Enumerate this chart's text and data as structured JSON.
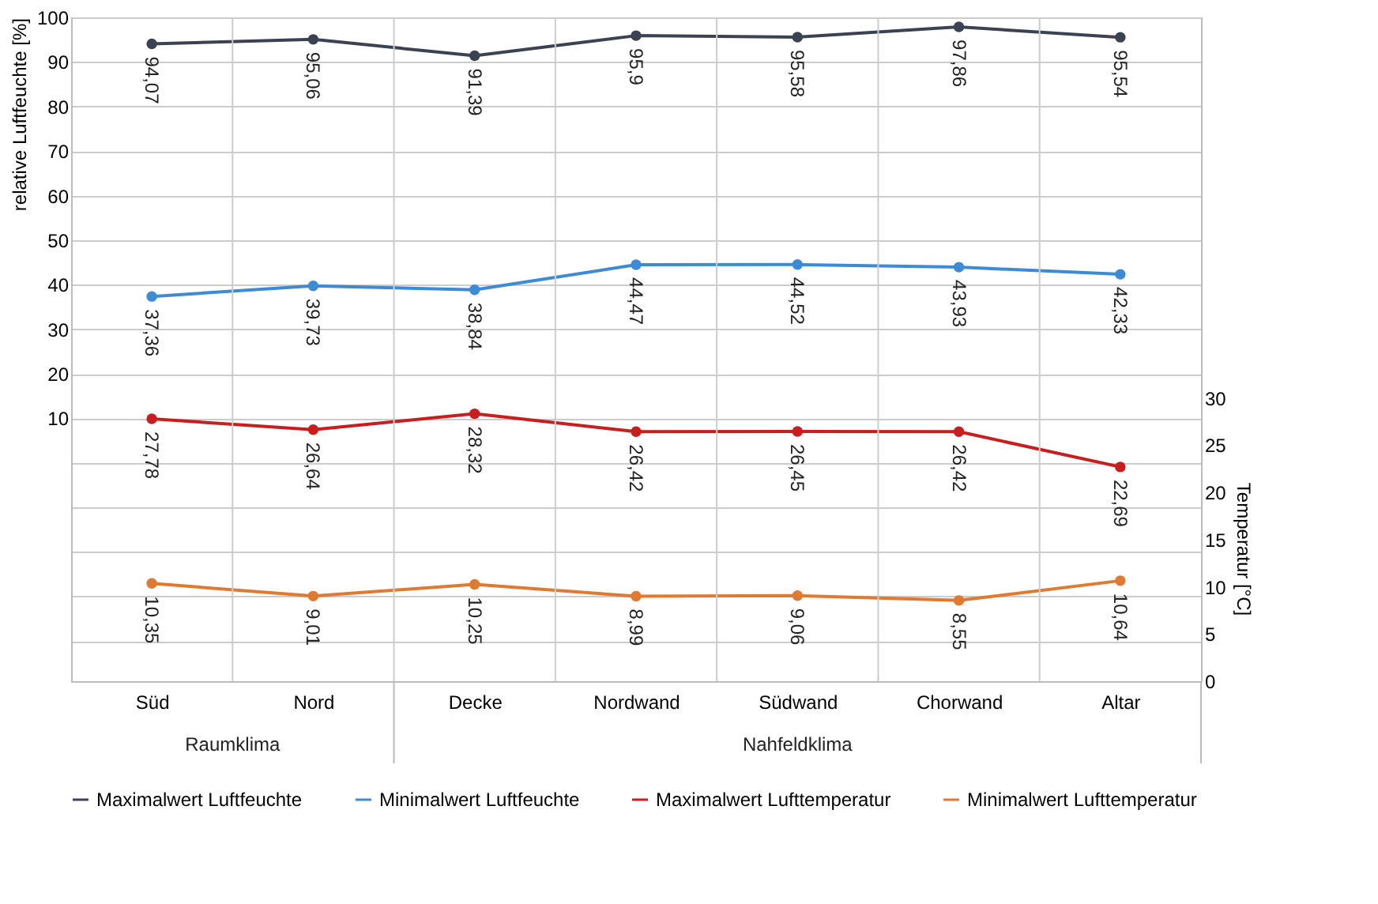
{
  "chart_data": {
    "type": "line",
    "xlabel": null,
    "ylabel": "relative Luftfeuchte [%]",
    "y2label": "Temperatur [°C]",
    "categories": [
      "Süd",
      "Nord",
      "Decke",
      "Nordwand",
      "Südwand",
      "Chorwand",
      "Altar"
    ],
    "series": [
      {
        "name": "Maximalwert Luftfeuchte",
        "color": "#3b4252",
        "values": [
          94.07,
          95.06,
          91.39,
          95.9,
          95.58,
          97.86,
          95.54
        ],
        "value_labels": [
          "94,07",
          "95,06",
          "91,39",
          "95,9",
          "95,58",
          "97,86",
          "95,54"
        ]
      },
      {
        "name": "Minimalwert Luftfeuchte",
        "color": "#3d8bd4",
        "values": [
          37.36,
          39.73,
          38.84,
          44.47,
          44.52,
          43.93,
          42.33
        ],
        "value_labels": [
          "37,36",
          "39,73",
          "38,84",
          "44,47",
          "44,52",
          "43,93",
          "42,33"
        ]
      },
      {
        "name": "Maximalwert Lufttemperatur",
        "color": "#c81e1e",
        "axis": "y2",
        "values": [
          27.78,
          26.64,
          28.32,
          26.42,
          26.45,
          26.42,
          22.69
        ],
        "value_labels": [
          "27,78",
          "26,64",
          "28,32",
          "26,42",
          "26,45",
          "26,42",
          "22,69"
        ]
      },
      {
        "name": "Minimalwert Lufttemperatur",
        "color": "#e07a30",
        "axis": "y2",
        "values": [
          10.35,
          9.01,
          10.25,
          8.99,
          9.06,
          8.55,
          10.64
        ],
        "value_labels": [
          "10,35",
          "9,01",
          "10,25",
          "8,99",
          "9,06",
          "8,55",
          "10,64"
        ]
      }
    ],
    "ylim": [
      -49,
      100
    ],
    "yticks": [
      {
        "value": -40,
        "label": null
      },
      {
        "value": -30,
        "label": null
      },
      {
        "value": -20,
        "label": null
      },
      {
        "value": -10,
        "label": null
      },
      {
        "value": 0,
        "label": null
      },
      10,
      20,
      30,
      40,
      50,
      60,
      70,
      80,
      90,
      100
    ],
    "y2lim": [
      0,
      70.3
    ],
    "y2ticks": [
      0,
      5,
      10,
      15,
      20,
      25,
      30
    ],
    "annotations": [
      "Raumklima",
      "Nahfeldklima"
    ],
    "data_labels": true,
    "marker": "circle",
    "grid": true,
    "legend": "bottom"
  }
}
